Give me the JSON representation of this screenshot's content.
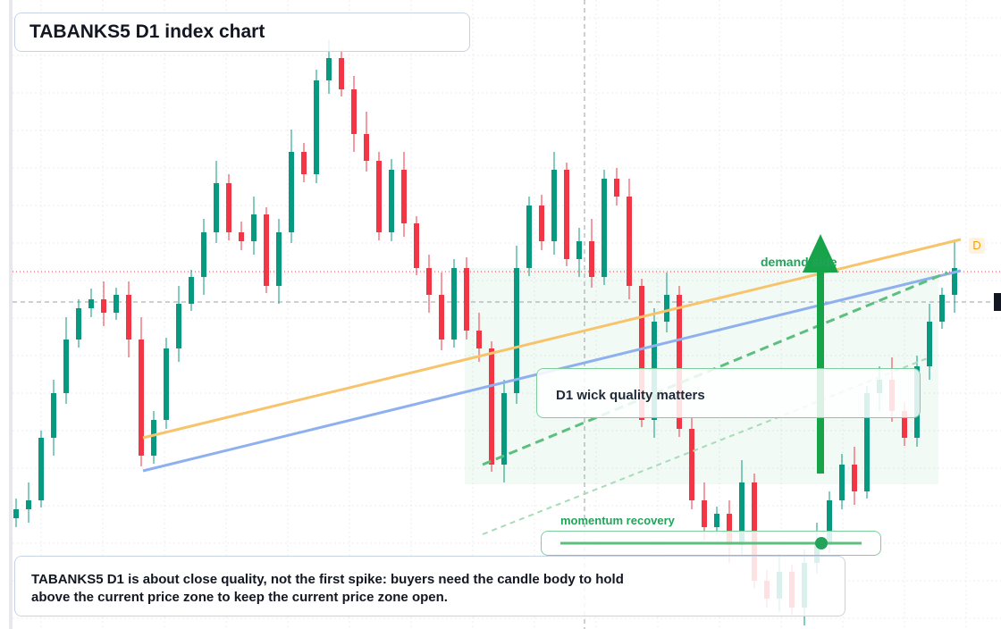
{
  "chart_data": {
    "type": "candlestick",
    "title": "TABANKS5 D1 index chart",
    "annotations": {
      "zone": "demand side",
      "box": "D1 wick quality matters",
      "momentum": "momentum recovery",
      "marker": "D",
      "note": [
        "TABANKS5 D1 is about close quality, not the first spike: buyers need the candle body to hold",
        "above the current price zone to keep the current price zone open."
      ]
    },
    "up_color": "#089981",
    "down_color": "#f23645",
    "ylim": [
      0,
      704
    ],
    "open": [
      124,
      134,
      144,
      214,
      264,
      324,
      359,
      369,
      354,
      374,
      324,
      194,
      234,
      314,
      364,
      394,
      444,
      499,
      444,
      434,
      464,
      384,
      444,
      534,
      509,
      614,
      639,
      604,
      554,
      524,
      444,
      514,
      454,
      404,
      374,
      324,
      404,
      334,
      314,
      184,
      264,
      404,
      474,
      434,
      514,
      414,
      434,
      394,
      504,
      484,
      384,
      234,
      344,
      374,
      224,
      144,
      114,
      129,
      94,
      164,
      54,
      34,
      64,
      24,
      74,
      94,
      144,
      184,
      154,
      264,
      279,
      244,
      214,
      294,
      344,
      374
    ],
    "high": [
      146,
      164,
      222,
      279,
      349,
      369,
      381,
      389,
      382,
      389,
      349,
      244,
      326,
      384,
      402,
      459,
      524,
      509,
      456,
      484,
      472,
      459,
      559,
      544,
      626,
      659,
      647,
      619,
      579,
      534,
      526,
      534,
      462,
      419,
      399,
      414,
      416,
      354,
      322,
      279,
      429,
      484,
      486,
      534,
      522,
      449,
      459,
      514,
      516,
      504,
      392,
      359,
      399,
      384,
      236,
      164,
      137,
      144,
      189,
      174,
      66,
      84,
      72,
      89,
      119,
      154,
      196,
      204,
      272,
      294,
      304,
      254,
      306,
      364,
      382,
      436
    ],
    "low": [
      114,
      119,
      136,
      194,
      252,
      315,
      349,
      339,
      346,
      304,
      182,
      185,
      224,
      299,
      356,
      374,
      432,
      435,
      424,
      419,
      376,
      364,
      432,
      500,
      499,
      599,
      596,
      534,
      512,
      435,
      434,
      439,
      396,
      354,
      312,
      315,
      324,
      299,
      176,
      164,
      252,
      395,
      424,
      419,
      406,
      394,
      382,
      385,
      474,
      369,
      226,
      214,
      332,
      215,
      134,
      99,
      106,
      74,
      82,
      45,
      24,
      19,
      16,
      4,
      62,
      85,
      134,
      139,
      146,
      244,
      232,
      205,
      204,
      279,
      336,
      354
    ],
    "close": [
      134,
      144,
      214,
      264,
      324,
      359,
      369,
      354,
      374,
      324,
      194,
      234,
      314,
      364,
      394,
      444,
      499,
      444,
      434,
      464,
      384,
      444,
      534,
      509,
      614,
      639,
      604,
      554,
      524,
      444,
      514,
      454,
      404,
      374,
      324,
      404,
      334,
      314,
      184,
      264,
      404,
      474,
      434,
      514,
      414,
      434,
      394,
      504,
      484,
      384,
      234,
      344,
      374,
      224,
      144,
      114,
      129,
      94,
      164,
      54,
      34,
      64,
      24,
      74,
      94,
      144,
      184,
      154,
      264,
      279,
      244,
      214,
      294,
      344,
      374,
      404
    ]
  }
}
